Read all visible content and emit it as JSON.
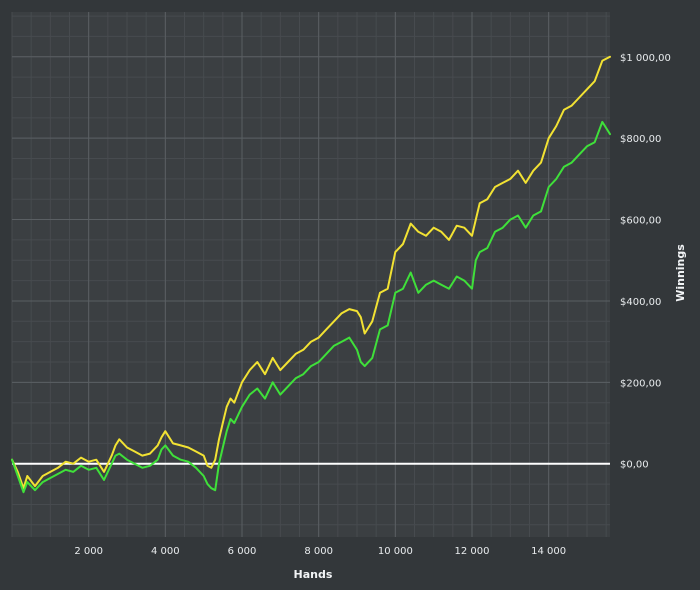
{
  "colors": {
    "background": "#33373a",
    "plot_background": "#3b3f42",
    "grid_major": "#5a5f63",
    "grid_minor": "#474b4f",
    "zero_line": "#ffffff",
    "series_yellow": "#f2e233",
    "series_green": "#3fe03a"
  },
  "chart_data": {
    "type": "line",
    "title": "",
    "xlabel": "Hands",
    "ylabel": "Winnings",
    "xlim": [
      0,
      15600
    ],
    "ylim": [
      -180,
      1110
    ],
    "x_ticks": [
      2000,
      4000,
      6000,
      8000,
      10000,
      12000,
      14000
    ],
    "x_tick_labels": [
      "2 000",
      "4 000",
      "6 000",
      "8 000",
      "10 000",
      "12 000",
      "14 000"
    ],
    "y_ticks": [
      0,
      200,
      400,
      600,
      800,
      1000
    ],
    "y_tick_labels": [
      "$0,00",
      "$200,00",
      "$400,00",
      "$600,00",
      "$800,00",
      "$1 000,00"
    ],
    "y_axis_side": "right",
    "grid": true,
    "legend": "none",
    "zero_line": true,
    "series": [
      {
        "color": "#f2e233",
        "x": [
          0,
          150,
          300,
          400,
          600,
          800,
          1000,
          1200,
          1400,
          1600,
          1800,
          2000,
          2200,
          2400,
          2600,
          2700,
          2800,
          3000,
          3200,
          3400,
          3600,
          3800,
          3900,
          4000,
          4200,
          4400,
          4600,
          4800,
          5000,
          5100,
          5200,
          5300,
          5400,
          5500,
          5600,
          5700,
          5800,
          6000,
          6200,
          6400,
          6600,
          6800,
          7000,
          7200,
          7400,
          7600,
          7800,
          8000,
          8200,
          8400,
          8600,
          8800,
          9000,
          9100,
          9200,
          9400,
          9600,
          9800,
          10000,
          10200,
          10400,
          10600,
          10800,
          11000,
          11200,
          11400,
          11600,
          11800,
          12000,
          12100,
          12200,
          12400,
          12600,
          12800,
          13000,
          13200,
          13400,
          13600,
          13800,
          14000,
          14200,
          14400,
          14600,
          14800,
          15000,
          15200,
          15400,
          15600
        ],
        "y": [
          10,
          -20,
          -60,
          -30,
          -55,
          -30,
          -20,
          -10,
          5,
          0,
          15,
          5,
          10,
          -20,
          20,
          45,
          60,
          40,
          30,
          20,
          25,
          45,
          65,
          80,
          50,
          45,
          40,
          30,
          20,
          -5,
          -10,
          10,
          60,
          100,
          140,
          160,
          150,
          200,
          230,
          250,
          220,
          260,
          230,
          250,
          270,
          280,
          300,
          310,
          330,
          350,
          370,
          380,
          375,
          360,
          320,
          350,
          420,
          430,
          520,
          540,
          590,
          570,
          560,
          580,
          570,
          550,
          585,
          580,
          560,
          600,
          640,
          650,
          680,
          690,
          700,
          720,
          690,
          720,
          740,
          800,
          830,
          870,
          880,
          900,
          920,
          940,
          990,
          1000
        ]
      },
      {
        "color": "#3fe03a",
        "x": [
          0,
          150,
          300,
          400,
          600,
          800,
          1000,
          1200,
          1400,
          1600,
          1800,
          2000,
          2200,
          2400,
          2600,
          2700,
          2800,
          3000,
          3200,
          3400,
          3600,
          3800,
          3900,
          4000,
          4200,
          4400,
          4600,
          4800,
          5000,
          5100,
          5200,
          5300,
          5400,
          5500,
          5600,
          5700,
          5800,
          6000,
          6200,
          6400,
          6600,
          6800,
          7000,
          7200,
          7400,
          7600,
          7800,
          8000,
          8200,
          8400,
          8600,
          8800,
          9000,
          9100,
          9200,
          9400,
          9600,
          9800,
          10000,
          10200,
          10400,
          10600,
          10800,
          11000,
          11200,
          11400,
          11600,
          11800,
          12000,
          12100,
          12200,
          12400,
          12600,
          12800,
          13000,
          13200,
          13400,
          13600,
          13800,
          14000,
          14200,
          14400,
          14600,
          14800,
          15000,
          15200,
          15400,
          15600
        ],
        "y": [
          10,
          -30,
          -70,
          -45,
          -65,
          -45,
          -35,
          -25,
          -15,
          -20,
          -5,
          -15,
          -10,
          -40,
          0,
          20,
          25,
          10,
          0,
          -10,
          -5,
          10,
          35,
          45,
          20,
          10,
          5,
          -10,
          -30,
          -50,
          -60,
          -65,
          0,
          40,
          80,
          110,
          100,
          140,
          170,
          185,
          160,
          200,
          170,
          190,
          210,
          220,
          240,
          250,
          270,
          290,
          300,
          310,
          280,
          250,
          240,
          260,
          330,
          340,
          420,
          430,
          470,
          420,
          440,
          450,
          440,
          430,
          460,
          450,
          430,
          500,
          520,
          530,
          570,
          580,
          600,
          610,
          580,
          610,
          620,
          680,
          700,
          730,
          740,
          760,
          780,
          790,
          840,
          810
        ]
      }
    ]
  }
}
